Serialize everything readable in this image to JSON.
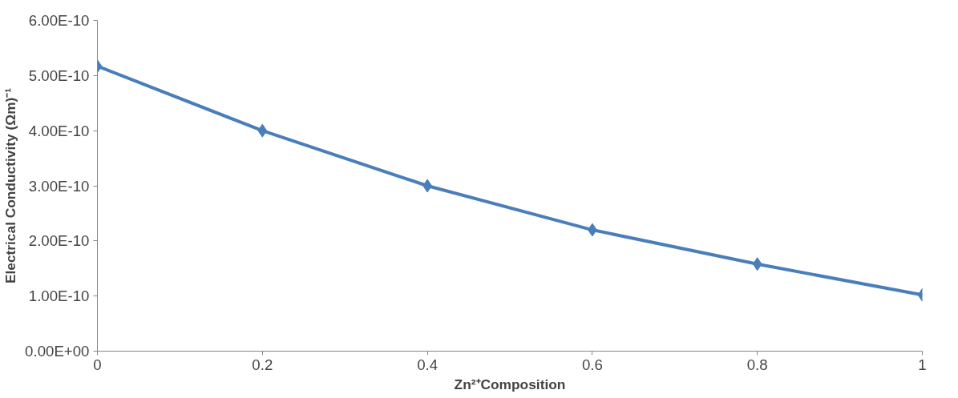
{
  "chart_data": {
    "type": "line",
    "xlabel": "Zn²⁺Composition",
    "ylabel": "Electrical Conductivity (Ωm)⁻¹",
    "x": [
      0,
      0.2,
      0.4,
      0.6,
      0.8,
      1
    ],
    "series": [
      {
        "color": "#4a7ebb",
        "values": [
          5.17e-10,
          4e-10,
          3e-10,
          2.2e-10,
          1.58e-10,
          1.02e-10
        ]
      }
    ],
    "xlim": [
      0,
      1
    ],
    "xticks": [
      0,
      0.2,
      0.4,
      0.6,
      0.8,
      1
    ],
    "ylim": [
      0,
      6e-10
    ],
    "yticks": [
      {
        "value": 0,
        "label": "0.00E+00"
      },
      {
        "value": 1e-10,
        "label": "1.00E-10"
      },
      {
        "value": 2e-10,
        "label": "2.00E-10"
      },
      {
        "value": 3e-10,
        "label": "3.00E-10"
      },
      {
        "value": 4e-10,
        "label": "4.00E-10"
      },
      {
        "value": 5e-10,
        "label": "5.00E-10"
      },
      {
        "value": 6e-10,
        "label": "6.00E-10"
      }
    ],
    "grid": false,
    "marker": "diamond",
    "line_style": "solid"
  }
}
